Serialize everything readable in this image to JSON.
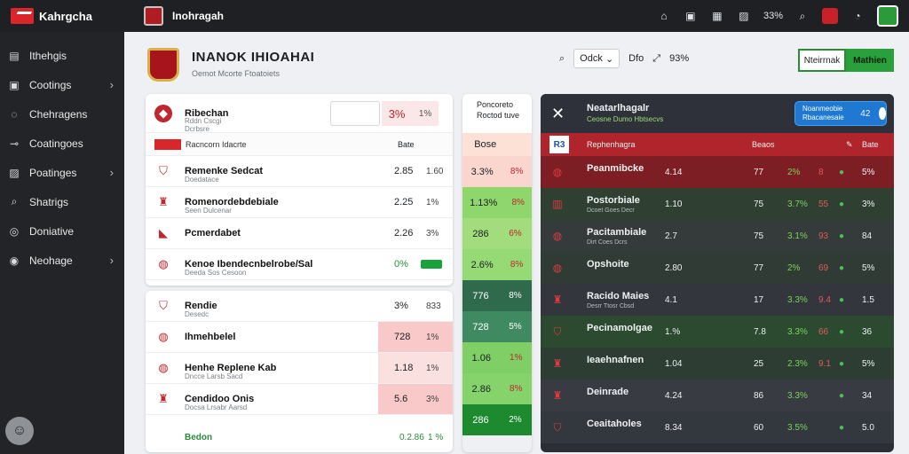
{
  "colors": {
    "topbar": "#1e2023",
    "sidebar": "#222427",
    "accent_red": "#d8262b",
    "accent_green": "#28a13a",
    "dark_panel": "#2b2e36",
    "toggle_blue": "#1f78d1"
  },
  "topbar": {
    "brand": "Kahrgcha",
    "title": "Inohragah",
    "zoom": "33%",
    "icons": [
      "home-icon",
      "window-icon",
      "grid-icon",
      "photo-icon",
      "search-icon",
      "flag-icon",
      "chat-icon",
      "avatar"
    ]
  },
  "sidebar": {
    "items": [
      {
        "label": "Ithehgis",
        "icon": "document-icon",
        "chevron": false
      },
      {
        "label": "Cootings",
        "icon": "folder-icon",
        "chevron": true
      },
      {
        "label": "Chehragens",
        "icon": "chat-icon",
        "chevron": false
      },
      {
        "label": "Coatingoes",
        "icon": "link-icon",
        "chevron": false
      },
      {
        "label": "Poatinges",
        "icon": "image-icon",
        "chevron": true
      },
      {
        "label": "Shatrigs",
        "icon": "search-icon",
        "chevron": false
      },
      {
        "label": "Doniative",
        "icon": "comment-icon",
        "chevron": false
      },
      {
        "label": "Neohage",
        "icon": "location-icon",
        "chevron": true
      }
    ]
  },
  "header": {
    "title": "INANOK IHIOAHAI",
    "subtitle": "Oemot Mcorte Ftoatoiets",
    "select_label": "Odck",
    "tool_a": "Dfo",
    "tool_b": "93%",
    "btn_outline": "Nteirrnak",
    "btn_green": "Mathien"
  },
  "card1": {
    "head_name": "Ribechan",
    "head_sub": "Rddn Cscgi Dcrbsre Itskbce",
    "head_pct": "3%",
    "head_val": "1%",
    "bar_label": "Racncorn Idacrte",
    "bar_col": "Bate",
    "rows": [
      {
        "name": "Remenke Sedcat",
        "sub": "Doedatace",
        "v1": "2.85",
        "v2": "1.60",
        "icon": "shield-icon"
      },
      {
        "name": "Romenordebdebiale",
        "sub": "Seen Dulcenar",
        "v1": "2.25",
        "v2": "1%",
        "icon": "crest-icon"
      },
      {
        "name": "Pcmerdabet",
        "sub": "",
        "v1": "2.26",
        "v2": "3%",
        "icon": "chevron-icon"
      },
      {
        "name": "Kenoe Ibendecnbelrobe/Sal",
        "sub": "Deeda Sos Cesoon",
        "v1": "0%",
        "v2": "",
        "icon": "ball-icon"
      }
    ]
  },
  "card2": {
    "rows": [
      {
        "name": "Rendie",
        "sub": "Desedc",
        "v1": "3%",
        "v2": "833",
        "icon": "shield-icon"
      },
      {
        "name": "Ihmehbelel",
        "sub": "",
        "v1": "728",
        "v2": "1%",
        "icon": "ball-icon"
      },
      {
        "name": "Henhe Replene Kab",
        "sub": "Dncce Larsb Sacd",
        "v1": "1.18",
        "v2": "1%",
        "icon": "ball-icon"
      },
      {
        "name": "Cendidoo Onis",
        "sub": "Docsa Lrsabr Aarsd",
        "v1": "5.6",
        "v2": "3%",
        "icon": "crest-icon"
      }
    ],
    "total_label": "Bedon",
    "total_v1": "0.2.86",
    "total_v2": "1 %"
  },
  "strip": {
    "head": "Poncoreto Roctod tuve",
    "cells": [
      {
        "a": "Bose",
        "b": "",
        "bg": "#fde0d6"
      },
      {
        "a": "3.3%",
        "b": "8%",
        "bg": "#fbd6cf"
      },
      {
        "a": "1.13%",
        "b": "8%",
        "bg": "#8fd66c"
      },
      {
        "a": "286",
        "b": "6%",
        "bg": "#a2dc7d"
      },
      {
        "a": "2.6%",
        "b": "8%",
        "bg": "#95da74"
      },
      {
        "a": "776",
        "b": "8%",
        "bg": "#2f6a4d"
      },
      {
        "a": "728",
        "b": "5%",
        "bg": "#3f8a60"
      },
      {
        "a": "1.06",
        "b": "1%",
        "bg": "#7fcf66"
      },
      {
        "a": "2.86",
        "b": "8%",
        "bg": "#86d36c"
      },
      {
        "a": "286",
        "b": "2%",
        "bg": "#1e8a2f"
      }
    ]
  },
  "dark": {
    "title": "Neatarlhagalr",
    "sub": "Ceosne Dumo Hbtsecvs",
    "toggle_text": "Noanmeobie Rbacanesaie",
    "toggle_key": "42",
    "col_idx": "R3",
    "col_name": "Rephenhagra",
    "col_b": "Beaos",
    "col_c": "Bate",
    "rows": [
      {
        "name": "Peanmibcke",
        "sub": "",
        "c1": "4.14",
        "c2": "77",
        "c3": "2%",
        "c4": "8",
        "c5": "5%",
        "bg": "#7c1e24",
        "icon": "ball-icon"
      },
      {
        "name": "Postorbiale",
        "sub": "Dcoet Goes Decr",
        "c1": "1.10",
        "c2": "75",
        "c3": "3.7%",
        "c4": "55",
        "c5": "3%",
        "bg": "#2f4032",
        "icon": "shirt-icon"
      },
      {
        "name": "Pacitambiale",
        "sub": "Dirt Coes Dcrs",
        "c1": "2.7",
        "c2": "75",
        "c3": "3.1%",
        "c4": "93",
        "c5": "84",
        "bg": "#353a3a",
        "icon": "ball-icon"
      },
      {
        "name": "Opshoite",
        "sub": "",
        "c1": "2.80",
        "c2": "77",
        "c3": "2%",
        "c4": "69",
        "c5": "5%",
        "bg": "#2f3b34",
        "icon": "ball-icon"
      },
      {
        "name": "Racido Maies",
        "sub": "Desrr Ttosr Cbsd",
        "c1": "4.1",
        "c2": "17",
        "c3": "3.3%",
        "c4": "9.4",
        "c5": "1.5",
        "bg": "#33363d",
        "icon": "crest-icon"
      },
      {
        "name": "Pecinamolgae",
        "sub": "",
        "c1": "1.%",
        "c2": "7.8",
        "c3": "3.3%",
        "c4": "66",
        "c5": "36",
        "bg": "#2b4a30",
        "icon": "shield-icon"
      },
      {
        "name": "Ieaehnafnen",
        "sub": "",
        "c1": "1.04",
        "c2": "25",
        "c3": "2.3%",
        "c4": "9.1",
        "c5": "5%",
        "bg": "#2e3d33",
        "icon": "crest-icon"
      },
      {
        "name": "Deinrade",
        "sub": "",
        "c1": "4.24",
        "c2": "86",
        "c3": "3.3%",
        "c4": "",
        "c5": "34",
        "bg": "#383c42",
        "icon": "crest-icon"
      },
      {
        "name": "Ceaitaholes",
        "sub": "",
        "c1": "8.34",
        "c2": "60",
        "c3": "3.5%",
        "c4": "",
        "c5": "5.0",
        "bg": "#33373e",
        "icon": "shield-icon"
      }
    ]
  }
}
